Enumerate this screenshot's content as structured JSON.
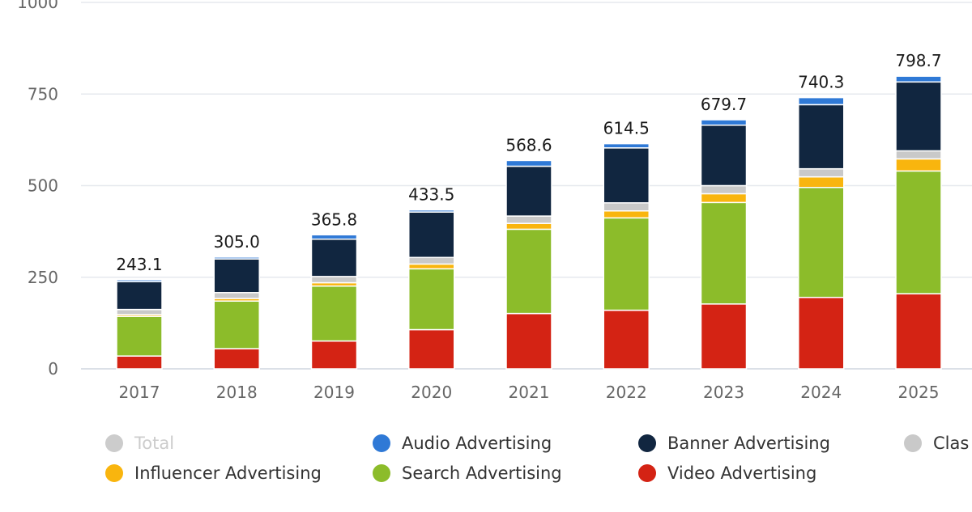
{
  "chart_data": {
    "type": "bar",
    "stacked": true,
    "categories": [
      "2017",
      "2018",
      "2019",
      "2020",
      "2021",
      "2022",
      "2023",
      "2024",
      "2025"
    ],
    "totals": [
      243.1,
      305.0,
      365.8,
      433.5,
      568.6,
      614.5,
      679.7,
      740.3,
      798.7
    ],
    "total_labels": [
      "243.1",
      "305.0",
      "365.8",
      "433.5",
      "568.6",
      "614.5",
      "679.7",
      "740.3",
      "798.7"
    ],
    "y_ticks": [
      {
        "value": 0,
        "label": "0"
      },
      {
        "value": 250,
        "label": "250"
      },
      {
        "value": 500,
        "label": "500"
      },
      {
        "value": 750,
        "label": "750"
      },
      {
        "value": 1000,
        "label": "1000"
      }
    ],
    "ylim": [
      0,
      1000
    ],
    "grid": true,
    "series": [
      {
        "name": "Video Advertising",
        "color": "#d42314",
        "values": [
          35,
          55,
          76,
          107,
          151,
          160,
          177,
          195,
          205
        ]
      },
      {
        "name": "Search Advertising",
        "color": "#8cbc2a",
        "values": [
          108,
          130,
          150,
          166,
          230,
          252,
          277,
          300,
          335
        ]
      },
      {
        "name": "Influencer Advertising",
        "color": "#f9b50e",
        "values": [
          5,
          7,
          9,
          13,
          16,
          19,
          24,
          29,
          33
        ]
      },
      {
        "name": "Classifieds",
        "color": "#c9c9c9",
        "values": [
          14,
          16,
          17,
          18,
          20,
          22,
          22,
          22,
          22
        ]
      },
      {
        "name": "Banner Advertising",
        "color": "#112640",
        "values": [
          76,
          92,
          102,
          124,
          136,
          150,
          165,
          175,
          188
        ]
      },
      {
        "name": "Audio Advertising",
        "color": "#2f79d6",
        "values": [
          5.1,
          5,
          11.8,
          5.5,
          15.6,
          11.5,
          14.7,
          19.3,
          15.7
        ]
      }
    ],
    "legend": {
      "placement": "bottom",
      "items": [
        {
          "label": "Total",
          "color": "#cccccc",
          "dimmed": true
        },
        {
          "label": "Audio Advertising",
          "color": "#2f79d6",
          "dimmed": false
        },
        {
          "label": "Banner Advertising",
          "color": "#112640",
          "dimmed": false
        },
        {
          "label": "Clas",
          "color": "#c9c9c9",
          "dimmed": false
        },
        {
          "label": "Influencer Advertising",
          "color": "#f9b50e",
          "dimmed": false
        },
        {
          "label": "Search Advertising",
          "color": "#8cbc2a",
          "dimmed": false
        },
        {
          "label": "Video Advertising",
          "color": "#d42314",
          "dimmed": false
        }
      ]
    }
  }
}
